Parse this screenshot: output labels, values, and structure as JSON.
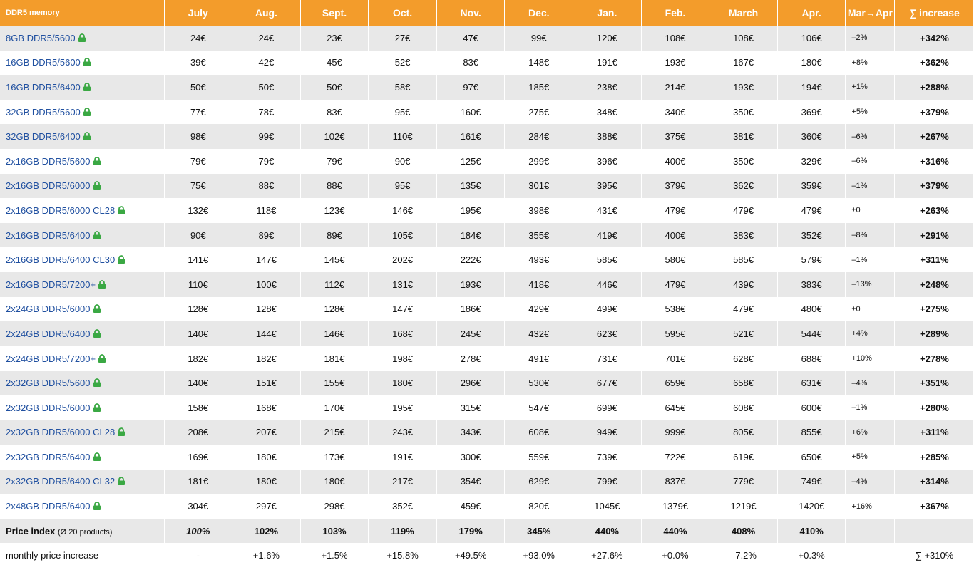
{
  "table": {
    "headers": [
      "DDR5 memory",
      "July",
      "Aug.",
      "Sept.",
      "Oct.",
      "Nov.",
      "Dec.",
      "Jan.",
      "Feb.",
      "March",
      "Apr.",
      "Mar→Apr",
      "∑ increase"
    ],
    "rows": [
      {
        "name": "8GB DDR5/5600",
        "cells": [
          "24€",
          "24€",
          "23€",
          "27€",
          "47€",
          "99€",
          "120€",
          "108€",
          "108€",
          "106€",
          "–2%",
          "+342%"
        ]
      },
      {
        "name": "16GB DDR5/5600",
        "cells": [
          "39€",
          "42€",
          "45€",
          "52€",
          "83€",
          "148€",
          "191€",
          "193€",
          "167€",
          "180€",
          "+8%",
          "+362%"
        ]
      },
      {
        "name": "16GB DDR5/6400",
        "cells": [
          "50€",
          "50€",
          "50€",
          "58€",
          "97€",
          "185€",
          "238€",
          "214€",
          "193€",
          "194€",
          "+1%",
          "+288%"
        ]
      },
      {
        "name": "32GB DDR5/5600",
        "cells": [
          "77€",
          "78€",
          "83€",
          "95€",
          "160€",
          "275€",
          "348€",
          "340€",
          "350€",
          "369€",
          "+5%",
          "+379%"
        ]
      },
      {
        "name": "32GB DDR5/6400",
        "cells": [
          "98€",
          "99€",
          "102€",
          "110€",
          "161€",
          "284€",
          "388€",
          "375€",
          "381€",
          "360€",
          "–6%",
          "+267%"
        ]
      },
      {
        "name": "2x16GB DDR5/5600",
        "cells": [
          "79€",
          "79€",
          "79€",
          "90€",
          "125€",
          "299€",
          "396€",
          "400€",
          "350€",
          "329€",
          "–6%",
          "+316%"
        ]
      },
      {
        "name": "2x16GB DDR5/6000",
        "cells": [
          "75€",
          "88€",
          "88€",
          "95€",
          "135€",
          "301€",
          "395€",
          "379€",
          "362€",
          "359€",
          "–1%",
          "+379%"
        ]
      },
      {
        "name": "2x16GB DDR5/6000 CL28",
        "cells": [
          "132€",
          "118€",
          "123€",
          "146€",
          "195€",
          "398€",
          "431€",
          "479€",
          "479€",
          "479€",
          "±0",
          "+263%"
        ]
      },
      {
        "name": "2x16GB DDR5/6400",
        "cells": [
          "90€",
          "89€",
          "89€",
          "105€",
          "184€",
          "355€",
          "419€",
          "400€",
          "383€",
          "352€",
          "–8%",
          "+291%"
        ]
      },
      {
        "name": "2x16GB DDR5/6400 CL30",
        "cells": [
          "141€",
          "147€",
          "145€",
          "202€",
          "222€",
          "493€",
          "585€",
          "580€",
          "585€",
          "579€",
          "–1%",
          "+311%"
        ]
      },
      {
        "name": "2x16GB DDR5/7200+",
        "cells": [
          "110€",
          "100€",
          "112€",
          "131€",
          "193€",
          "418€",
          "446€",
          "479€",
          "439€",
          "383€",
          "–13%",
          "+248%"
        ]
      },
      {
        "name": "2x24GB DDR5/6000",
        "cells": [
          "128€",
          "128€",
          "128€",
          "147€",
          "186€",
          "429€",
          "499€",
          "538€",
          "479€",
          "480€",
          "±0",
          "+275%"
        ]
      },
      {
        "name": "2x24GB DDR5/6400",
        "cells": [
          "140€",
          "144€",
          "146€",
          "168€",
          "245€",
          "432€",
          "623€",
          "595€",
          "521€",
          "544€",
          "+4%",
          "+289%"
        ]
      },
      {
        "name": "2x24GB DDR5/7200+",
        "cells": [
          "182€",
          "182€",
          "181€",
          "198€",
          "278€",
          "491€",
          "731€",
          "701€",
          "628€",
          "688€",
          "+10%",
          "+278%"
        ]
      },
      {
        "name": "2x32GB DDR5/5600",
        "cells": [
          "140€",
          "151€",
          "155€",
          "180€",
          "296€",
          "530€",
          "677€",
          "659€",
          "658€",
          "631€",
          "–4%",
          "+351%"
        ]
      },
      {
        "name": "2x32GB DDR5/6000",
        "cells": [
          "158€",
          "168€",
          "170€",
          "195€",
          "315€",
          "547€",
          "699€",
          "645€",
          "608€",
          "600€",
          "–1%",
          "+280%"
        ]
      },
      {
        "name": "2x32GB DDR5/6000 CL28",
        "cells": [
          "208€",
          "207€",
          "215€",
          "243€",
          "343€",
          "608€",
          "949€",
          "999€",
          "805€",
          "855€",
          "+6%",
          "+311%"
        ]
      },
      {
        "name": "2x32GB DDR5/6400",
        "cells": [
          "169€",
          "180€",
          "173€",
          "191€",
          "300€",
          "559€",
          "739€",
          "722€",
          "619€",
          "650€",
          "+5%",
          "+285%"
        ]
      },
      {
        "name": "2x32GB DDR5/6400 CL32",
        "cells": [
          "181€",
          "180€",
          "180€",
          "217€",
          "354€",
          "629€",
          "799€",
          "837€",
          "779€",
          "749€",
          "–4%",
          "+314%"
        ]
      },
      {
        "name": "2x48GB DDR5/6400",
        "cells": [
          "304€",
          "297€",
          "298€",
          "352€",
          "459€",
          "820€",
          "1045€",
          "1379€",
          "1219€",
          "1420€",
          "+16%",
          "+367%"
        ]
      }
    ],
    "price_index": {
      "label": "Price index",
      "note": "(Ø 20 products)",
      "cells": [
        "100%",
        "102%",
        "103%",
        "119%",
        "179%",
        "345%",
        "440%",
        "440%",
        "408%",
        "410%"
      ]
    },
    "monthly": {
      "label": "monthly price increase",
      "cells": [
        "-",
        "+1.6%",
        "+1.5%",
        "+15.8%",
        "+49.5%",
        "+93.0%",
        "+27.6%",
        "+0.0%",
        "–7.2%",
        "+0.3%"
      ],
      "total": "∑ +310%"
    }
  }
}
